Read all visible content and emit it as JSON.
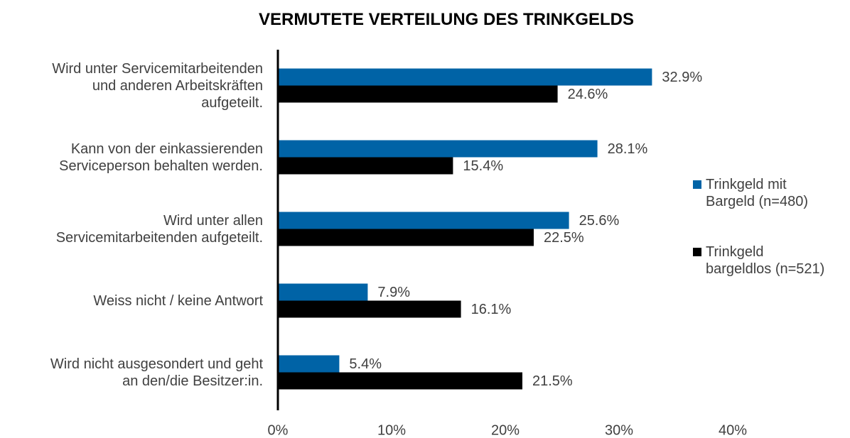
{
  "chart_data": {
    "type": "hbar",
    "title": "VERMUTETE VERTEILUNG DES TRINKGELDS",
    "categories": [
      "Wird unter Servicemitarbeitenden\nund anderen Arbeitskräften\naufgeteilt.",
      "Kann von der einkassierenden\nServiceperson behalten werden.",
      "Wird unter allen\nServicemitarbeitenden aufgeteilt.",
      "Weiss nicht / keine Antwort",
      "Wird nicht ausgesondert und geht\nan den/die Besitzer:in."
    ],
    "series": [
      {
        "name": "Trinkgeld mit\nBargeld (n=480)",
        "color": "#0063a6",
        "values": [
          32.9,
          28.1,
          25.6,
          7.9,
          5.4
        ],
        "value_labels": [
          "32.9%",
          "28.1%",
          "25.6%",
          "7.9%",
          "5.4%"
        ]
      },
      {
        "name": "Trinkgeld\nbargeldlos (n=521)",
        "color": "#000000",
        "values": [
          24.6,
          15.4,
          22.5,
          16.1,
          21.5
        ],
        "value_labels": [
          "24.6%",
          "15.4%",
          "22.5%",
          "16.1%",
          "21.5%"
        ]
      }
    ],
    "xlim": [
      0,
      40
    ],
    "xticks": [
      {
        "value": 0,
        "label": "0%"
      },
      {
        "value": 10,
        "label": "10%"
      },
      {
        "value": 20,
        "label": "20%"
      },
      {
        "value": 30,
        "label": "30%"
      },
      {
        "value": 40,
        "label": "40%"
      }
    ],
    "legend": "right"
  }
}
